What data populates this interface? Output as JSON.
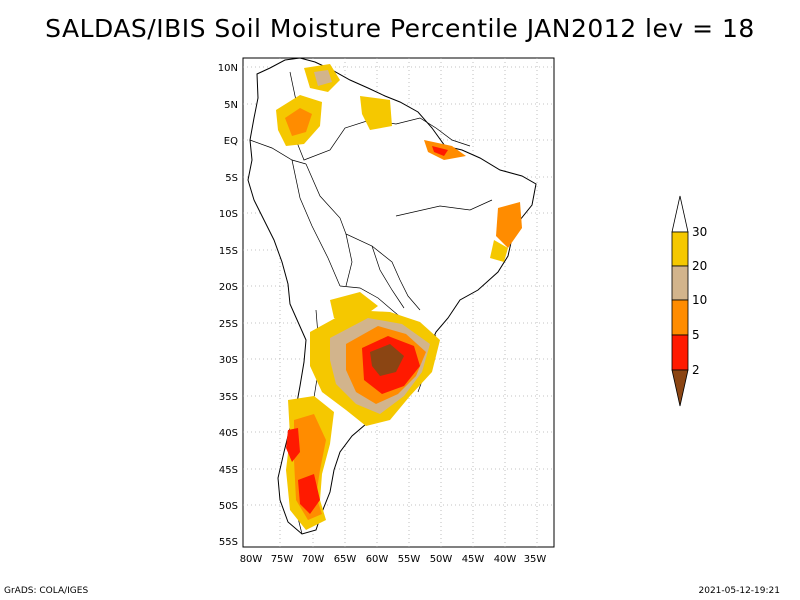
{
  "title": "SALDAS/IBIS Soil Moisture Percentile JAN2012 lev = 18",
  "map": {
    "lat_labels": [
      "10N",
      "5N",
      "EQ",
      "5S",
      "10S",
      "15S",
      "20S",
      "25S",
      "30S",
      "35S",
      "40S",
      "45S",
      "50S",
      "55S"
    ],
    "lon_labels": [
      "80W",
      "75W",
      "70W",
      "65W",
      "60W",
      "55W",
      "50W",
      "45W",
      "40W",
      "35W"
    ]
  },
  "legend": {
    "levels": [
      "30",
      "20",
      "10",
      "5",
      "2"
    ],
    "colors": {
      "above30": "#ffffff",
      "c20_30": "#f5c800",
      "c10_20": "#d2b48c",
      "c5_10": "#ff8c00",
      "c2_5": "#ff1a00",
      "below2": "#8b4513"
    }
  },
  "footer": {
    "left": "GrADS: COLA/IGES",
    "right": "2021-05-12-19:21"
  }
}
